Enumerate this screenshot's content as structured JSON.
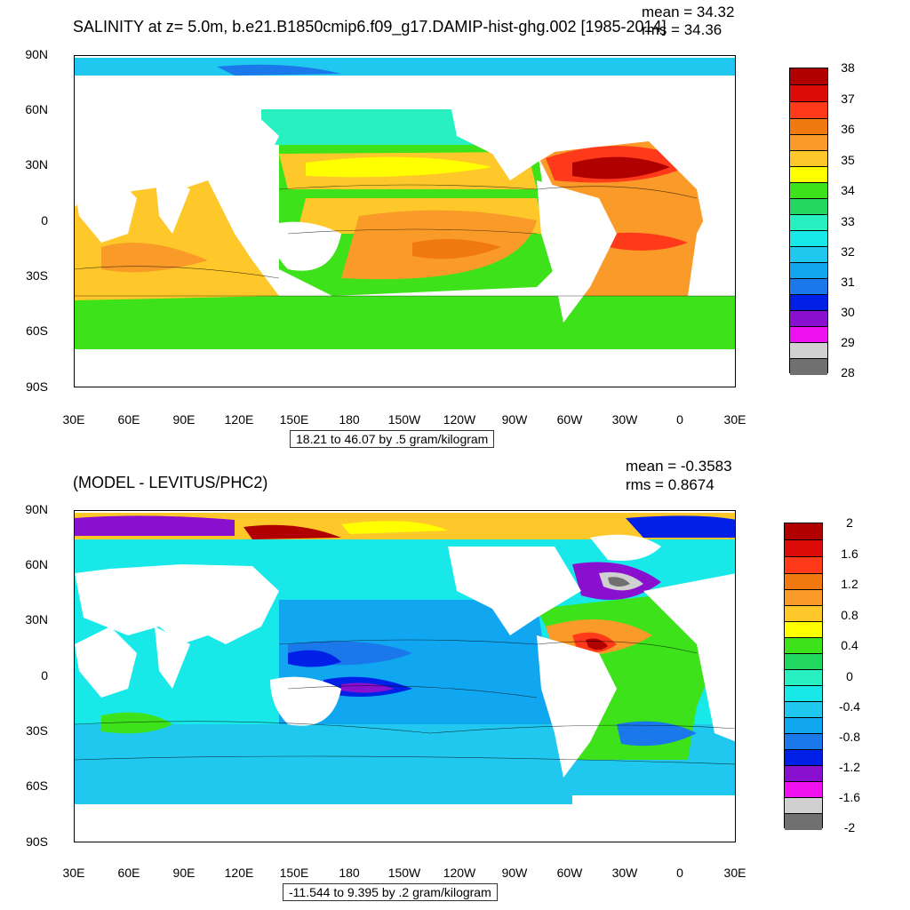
{
  "panel1": {
    "title": "SALINITY at z=   5.0m, b.e21.B1850cmip6.f09_g17.DAMIP-hist-ghg.002 [1985-2014]",
    "mean": "mean = 34.32",
    "rms": "rms = 34.36",
    "lat_labels": [
      "90N",
      "60N",
      "30N",
      "0",
      "30S",
      "60S",
      "90S"
    ],
    "lon_labels": [
      "30E",
      "60E",
      "90E",
      "120E",
      "150E",
      "180",
      "150W",
      "120W",
      "90W",
      "60W",
      "30W",
      "0",
      "30E"
    ],
    "contour_info": "18.21 to 46.07 by .5 gram/kilogram",
    "colorbar_labels": [
      "38",
      "37",
      "36",
      "35",
      "34",
      "33",
      "32",
      "31",
      "30",
      "29",
      "28"
    ],
    "colorbar_colors": [
      "#b00000",
      "#dd0a0a",
      "#ff3a1a",
      "#f07a10",
      "#fa9a28",
      "#ffc82a",
      "#ffff00",
      "#3ee21a",
      "#22d860",
      "#28f0c0",
      "#18e8e8",
      "#20c8f0",
      "#10a6f0",
      "#1a78ea",
      "#0020e8",
      "#8a10d0",
      "#ee10ee",
      "#d0d0d0",
      "#707070"
    ]
  },
  "panel2": {
    "title": "(MODEL - LEVITUS/PHC2)",
    "mean": "mean = -0.3583",
    "rms": "rms = 0.8674",
    "lat_labels": [
      "90N",
      "60N",
      "30N",
      "0",
      "30S",
      "60S",
      "90S"
    ],
    "lon_labels": [
      "30E",
      "60E",
      "90E",
      "120E",
      "150E",
      "180",
      "150W",
      "120W",
      "90W",
      "60W",
      "30W",
      "0",
      "30E"
    ],
    "contour_info": "-11.544 to 9.395 by .2 gram/kilogram",
    "colorbar_labels": [
      "2",
      "1.6",
      "1.2",
      "0.8",
      "0.4",
      "0",
      "-0.4",
      "-0.8",
      "-1.2",
      "-1.6",
      "-2"
    ],
    "colorbar_colors": [
      "#b00000",
      "#dd0a0a",
      "#ff3a1a",
      "#f07a10",
      "#fa9a28",
      "#ffc82a",
      "#ffff00",
      "#3ee21a",
      "#22d860",
      "#28f0c0",
      "#18e8e8",
      "#20c8f0",
      "#10a6f0",
      "#1a78ea",
      "#0020e8",
      "#8a10d0",
      "#ee10ee",
      "#d0d0d0",
      "#707070"
    ]
  }
}
